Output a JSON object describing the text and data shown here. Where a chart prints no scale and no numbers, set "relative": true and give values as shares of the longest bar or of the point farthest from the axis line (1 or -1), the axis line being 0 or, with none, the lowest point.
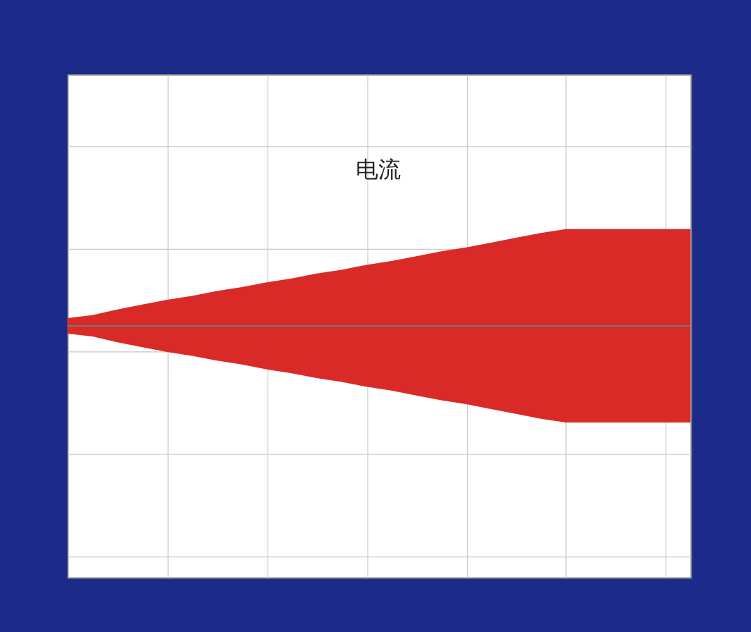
{
  "chart_data": {
    "type": "area",
    "relative": true,
    "grid": true,
    "tick_labels": false,
    "categories": [
      null,
      null,
      null,
      null,
      null,
      null,
      null,
      null,
      null,
      null,
      null,
      null,
      null,
      null,
      null,
      null,
      null,
      null,
      null,
      null,
      null,
      null,
      null,
      null,
      null,
      null
    ],
    "series": [
      {
        "color": "#d92a27",
        "values": [
          0.08,
          0.11,
          0.17,
          0.22,
          0.27,
          0.31,
          0.36,
          0.4,
          0.45,
          0.49,
          0.54,
          0.58,
          0.63,
          0.67,
          0.72,
          0.77,
          0.81,
          0.86,
          0.91,
          0.96,
          1,
          1,
          1,
          1,
          1,
          1
        ]
      },
      {
        "color": "#d92a27",
        "values": [
          -0.08,
          -0.11,
          -0.17,
          -0.22,
          -0.27,
          -0.31,
          -0.36,
          -0.4,
          -0.45,
          -0.49,
          -0.54,
          -0.58,
          -0.63,
          -0.67,
          -0.72,
          -0.77,
          -0.81,
          -0.86,
          -0.91,
          -0.96,
          -1,
          -1,
          -1,
          -1,
          -1,
          -1
        ]
      }
    ],
    "annotations": [
      "电流"
    ]
  }
}
